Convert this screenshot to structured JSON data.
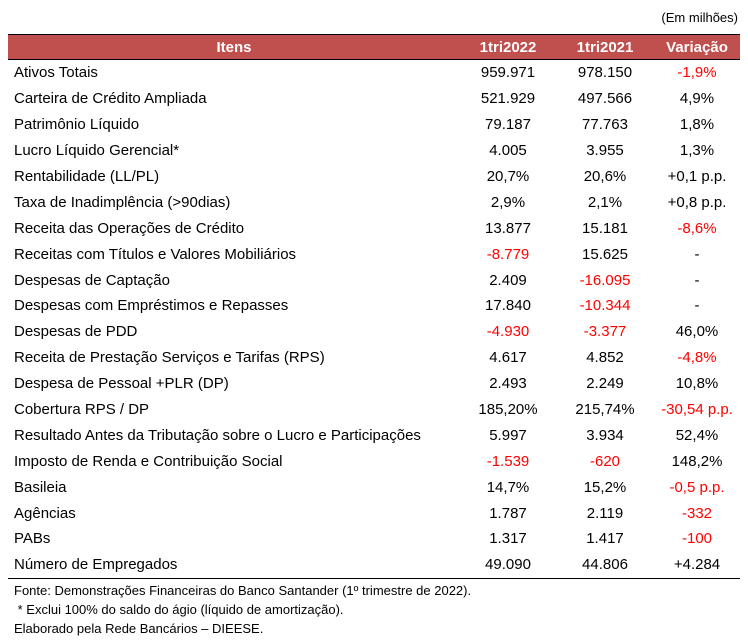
{
  "unit_label": "(Em milhões)",
  "headers": [
    "Itens",
    "1tri2022",
    "1tri2021",
    "Variação"
  ],
  "rows": [
    {
      "item": "Ativos Totais",
      "v2022": "959.971",
      "v2021": "978.150",
      "var": "-1,9%",
      "neg": [
        false,
        false,
        true
      ]
    },
    {
      "item": "Carteira de Crédito Ampliada",
      "v2022": "521.929",
      "v2021": "497.566",
      "var": "4,9%",
      "neg": [
        false,
        false,
        false
      ]
    },
    {
      "item": "Patrimônio Líquido",
      "v2022": "79.187",
      "v2021": "77.763",
      "var": "1,8%",
      "neg": [
        false,
        false,
        false
      ]
    },
    {
      "item": "Lucro Líquido Gerencial*",
      "v2022": "4.005",
      "v2021": "3.955",
      "var": "1,3%",
      "neg": [
        false,
        false,
        false
      ]
    },
    {
      "item": "Rentabilidade (LL/PL)",
      "v2022": "20,7%",
      "v2021": "20,6%",
      "var": "+0,1 p.p.",
      "neg": [
        false,
        false,
        false
      ]
    },
    {
      "item": "Taxa de Inadimplência (>90dias)",
      "v2022": "2,9%",
      "v2021": "2,1%",
      "var": "+0,8 p.p.",
      "neg": [
        false,
        false,
        false
      ]
    },
    {
      "item": "Receita das Operações de Crédito",
      "v2022": "13.877",
      "v2021": "15.181",
      "var": "-8,6%",
      "neg": [
        false,
        false,
        true
      ]
    },
    {
      "item": "Receitas com Títulos e Valores Mobiliários",
      "v2022": "-8.779",
      "v2021": "15.625",
      "var": "-",
      "neg": [
        true,
        false,
        false
      ]
    },
    {
      "item": "Despesas de Captação",
      "v2022": "2.409",
      "v2021": "-16.095",
      "var": "-",
      "neg": [
        false,
        true,
        false
      ]
    },
    {
      "item": "Despesas com Empréstimos e Repasses",
      "v2022": "17.840",
      "v2021": "-10.344",
      "var": "-",
      "neg": [
        false,
        true,
        false
      ]
    },
    {
      "item": "Despesas de PDD",
      "v2022": "-4.930",
      "v2021": "-3.377",
      "var": "46,0%",
      "neg": [
        true,
        true,
        false
      ]
    },
    {
      "item": "Receita de Prestação Serviços e Tarifas (RPS)",
      "v2022": "4.617",
      "v2021": "4.852",
      "var": "-4,8%",
      "neg": [
        false,
        false,
        true
      ]
    },
    {
      "item": "Despesa de Pessoal +PLR (DP)",
      "v2022": "2.493",
      "v2021": "2.249",
      "var": "10,8%",
      "neg": [
        false,
        false,
        false
      ]
    },
    {
      "item": "Cobertura RPS / DP",
      "v2022": "185,20%",
      "v2021": "215,74%",
      "var": "-30,54 p.p.",
      "neg": [
        false,
        false,
        true
      ]
    },
    {
      "item": "Resultado Antes da Tributação sobre o Lucro e Participações",
      "v2022": "5.997",
      "v2021": "3.934",
      "var": "52,4%",
      "neg": [
        false,
        false,
        false
      ]
    },
    {
      "item": "Imposto de Renda e Contribuição Social",
      "v2022": "-1.539",
      "v2021": "-620",
      "var": "148,2%",
      "neg": [
        true,
        true,
        false
      ]
    },
    {
      "item": "Basileia",
      "v2022": "14,7%",
      "v2021": "15,2%",
      "var": "-0,5 p.p.",
      "neg": [
        false,
        false,
        true
      ]
    },
    {
      "item": "Agências",
      "v2022": "1.787",
      "v2021": "2.119",
      "var": "-332",
      "neg": [
        false,
        false,
        true
      ]
    },
    {
      "item": "PABs",
      "v2022": "1.317",
      "v2021": "1.417",
      "var": "-100",
      "neg": [
        false,
        false,
        true
      ]
    },
    {
      "item": "Número de Empregados",
      "v2022": "49.090",
      "v2021": "44.806",
      "var": "+4.284",
      "neg": [
        false,
        false,
        false
      ]
    }
  ],
  "notes": [
    "Fonte: Demonstrações Financeiras do Banco Santander (1º trimestre de 2022).",
    " * Exclui 100% do saldo do ágio (líquido de amortização).",
    "Elaborado pela Rede Bancários – DIEESE."
  ],
  "colors": {
    "header_bg": "#c0504d",
    "header_text": "#ffffff",
    "negative": "#ff0000"
  }
}
